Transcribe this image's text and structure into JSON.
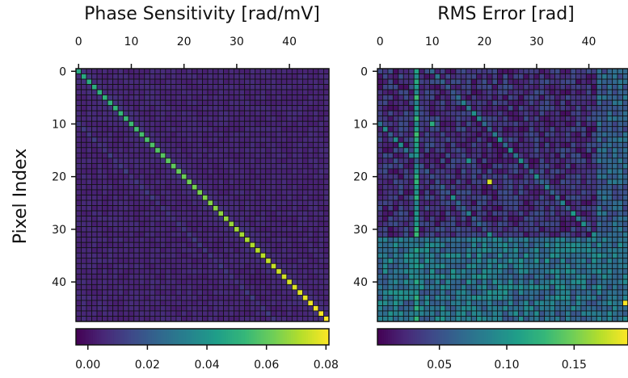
{
  "chart_data": [
    {
      "type": "heatmap",
      "title": "Phase Sensitivity [rad/mV]",
      "ylabel": "Pixel Index",
      "xlabel": "",
      "grid_size": [
        48,
        48
      ],
      "x_ticks": [
        0,
        10,
        20,
        30,
        40
      ],
      "y_ticks": [
        0,
        10,
        20,
        30,
        40
      ],
      "colormap": "viridis",
      "colorbar": {
        "orientation": "horizontal",
        "location": "bottom",
        "range": [
          -0.004,
          0.081
        ],
        "ticks": [
          0.0,
          0.02,
          0.04,
          0.06,
          0.08
        ],
        "tick_labels": [
          "0.00",
          "0.02",
          "0.04",
          "0.06",
          "0.08"
        ]
      },
      "pattern": {
        "background": 0.003,
        "diagonal": {
          "start": 0.047,
          "end": 0.081
        },
        "off_diagonals": [
          {
            "offset": 1,
            "value": 0.006
          },
          {
            "offset": 2,
            "value": 0.005
          },
          {
            "offset": 3,
            "value": 0.004
          }
        ],
        "secondary_diagonal_offset": 10,
        "secondary_value": 0.008
      }
    },
    {
      "type": "heatmap",
      "title": "RMS Error [rad]",
      "ylabel": "",
      "xlabel": "",
      "grid_size": [
        48,
        48
      ],
      "x_ticks": [
        0,
        10,
        20,
        30,
        40
      ],
      "y_ticks": [
        0,
        10,
        20,
        30,
        40
      ],
      "colormap": "viridis",
      "colorbar": {
        "orientation": "horizontal",
        "location": "bottom",
        "range": [
          0.004,
          0.19
        ],
        "ticks": [
          0.05,
          0.1,
          0.15
        ],
        "tick_labels": [
          "0.05",
          "0.10",
          "0.15"
        ]
      },
      "pattern": {
        "background_range": [
          0.01,
          0.05
        ],
        "bright_column": {
          "index": 7,
          "value": 0.11
        },
        "bright_row": {
          "index": 32,
          "value": 0.075
        },
        "lower_band": {
          "from_row": 33,
          "value_range": [
            0.05,
            0.1
          ]
        },
        "right_band": {
          "from_col": 42,
          "value_range": [
            0.04,
            0.08
          ]
        },
        "diagonal_value": 0.045,
        "secondary_diagonals": [
          {
            "offset": 10,
            "value": 0.09
          },
          {
            "offset": -10,
            "value": 0.08
          }
        ],
        "peaks": [
          {
            "row": 21,
            "col": 21,
            "value": 0.18
          },
          {
            "row": 44,
            "col": 47,
            "value": 0.19
          },
          {
            "row": 10,
            "col": 10,
            "value": 0.12
          },
          {
            "row": 17,
            "col": 17,
            "value": 0.1
          }
        ]
      }
    }
  ]
}
